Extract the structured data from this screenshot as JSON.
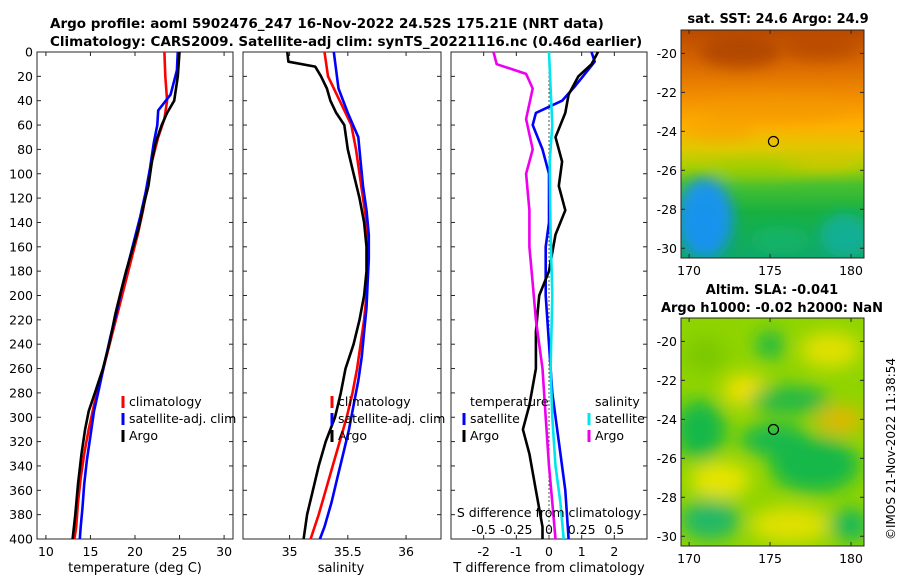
{
  "header": {
    "line1": "Argo profile: aoml 5902476_247 16-Nov-2022 24.52S 175.21E (NRT data)",
    "line2": "Climatology: CARS2009. Satellite-adj clim: synTS_20221116.nc (0.46d earlier)"
  },
  "credit": "©IMOS 21-Nov-2022 11:38:54",
  "colors": {
    "clim": "#ff0000",
    "sat": "#0000ff",
    "argo": "#000000",
    "sat_salt": "#00e5ee",
    "argo_salt": "#ee00ee"
  },
  "chart_data": [
    {
      "type": "line",
      "id": "temperature",
      "xlabel": "temperature (deg C)",
      "xlim": [
        9,
        31
      ],
      "ylim": [
        0,
        400
      ],
      "xticks": [
        10,
        15,
        20,
        25,
        30
      ],
      "yticks": [
        0,
        20,
        40,
        60,
        80,
        100,
        120,
        140,
        160,
        180,
        200,
        220,
        240,
        260,
        280,
        300,
        320,
        340,
        360,
        380,
        400
      ],
      "legend": [
        "climatology",
        "satellite-adj. clim",
        "Argo"
      ],
      "series": [
        {
          "name": "climatology",
          "color": "clim",
          "points": [
            [
              23.3,
              0
            ],
            [
              23.4,
              20
            ],
            [
              23.6,
              40
            ],
            [
              23.3,
              55
            ],
            [
              22.6,
              70
            ],
            [
              21.9,
              90
            ],
            [
              21.4,
              110
            ],
            [
              20.9,
              130
            ],
            [
              20.3,
              150
            ],
            [
              19.6,
              170
            ],
            [
              18.9,
              190
            ],
            [
              18.2,
              210
            ],
            [
              17.5,
              230
            ],
            [
              16.8,
              250
            ],
            [
              16.1,
              270
            ],
            [
              15.4,
              290
            ],
            [
              14.8,
              310
            ],
            [
              14.3,
              330
            ],
            [
              13.9,
              350
            ],
            [
              13.6,
              370
            ],
            [
              13.4,
              390
            ],
            [
              13.2,
              400
            ]
          ]
        },
        {
          "name": "satellite-adj. clim",
          "color": "sat",
          "points": [
            [
              24.8,
              0
            ],
            [
              24.7,
              15
            ],
            [
              24.0,
              35
            ],
            [
              22.6,
              48
            ],
            [
              22.5,
              60
            ],
            [
              22.1,
              75
            ],
            [
              21.7,
              95
            ],
            [
              21.2,
              115
            ],
            [
              20.6,
              135
            ],
            [
              19.9,
              155
            ],
            [
              19.2,
              175
            ],
            [
              18.5,
              195
            ],
            [
              17.9,
              215
            ],
            [
              17.2,
              235
            ],
            [
              16.6,
              255
            ],
            [
              16.0,
              275
            ],
            [
              15.4,
              295
            ],
            [
              15.0,
              315
            ],
            [
              14.6,
              335
            ],
            [
              14.3,
              355
            ],
            [
              14.1,
              375
            ],
            [
              13.9,
              390
            ],
            [
              13.8,
              400
            ]
          ]
        },
        {
          "name": "Argo",
          "color": "argo",
          "points": [
            [
              25.0,
              0
            ],
            [
              24.8,
              20
            ],
            [
              24.4,
              40
            ],
            [
              23.6,
              50
            ],
            [
              23.0,
              60
            ],
            [
              22.3,
              75
            ],
            [
              21.9,
              90
            ],
            [
              21.5,
              110
            ],
            [
              21.0,
              125
            ],
            [
              20.4,
              145
            ],
            [
              19.8,
              160
            ],
            [
              19.0,
              180
            ],
            [
              18.3,
              200
            ],
            [
              17.8,
              215
            ],
            [
              17.1,
              240
            ],
            [
              16.4,
              260
            ],
            [
              15.5,
              280
            ],
            [
              14.8,
              295
            ],
            [
              14.4,
              310
            ],
            [
              14.0,
              330
            ],
            [
              13.6,
              355
            ],
            [
              13.3,
              380
            ],
            [
              13.0,
              400
            ]
          ]
        }
      ]
    },
    {
      "type": "line",
      "id": "salinity",
      "xlabel": "salinity",
      "xlim": [
        34.6,
        36.3
      ],
      "ylim": [
        0,
        400
      ],
      "xticks": [
        35,
        35.5,
        36
      ],
      "legend": [
        "climatology",
        "satellite-adj. clim",
        "Argo"
      ],
      "series": [
        {
          "name": "climatology",
          "color": "clim",
          "points": [
            [
              35.3,
              0
            ],
            [
              35.33,
              20
            ],
            [
              35.43,
              40
            ],
            [
              35.53,
              60
            ],
            [
              35.57,
              80
            ],
            [
              35.6,
              100
            ],
            [
              35.63,
              120
            ],
            [
              35.66,
              140
            ],
            [
              35.67,
              160
            ],
            [
              35.67,
              180
            ],
            [
              35.66,
              200
            ],
            [
              35.64,
              220
            ],
            [
              35.61,
              240
            ],
            [
              35.58,
              260
            ],
            [
              35.54,
              280
            ],
            [
              35.49,
              300
            ],
            [
              35.43,
              320
            ],
            [
              35.37,
              340
            ],
            [
              35.31,
              360
            ],
            [
              35.25,
              380
            ],
            [
              35.18,
              400
            ]
          ]
        },
        {
          "name": "satellite-adj. clim",
          "color": "sat",
          "points": [
            [
              35.38,
              0
            ],
            [
              35.42,
              30
            ],
            [
              35.5,
              50
            ],
            [
              35.59,
              70
            ],
            [
              35.61,
              90
            ],
            [
              35.63,
              110
            ],
            [
              35.66,
              130
            ],
            [
              35.68,
              150
            ],
            [
              35.68,
              170
            ],
            [
              35.67,
              190
            ],
            [
              35.66,
              210
            ],
            [
              35.64,
              230
            ],
            [
              35.62,
              250
            ],
            [
              35.59,
              270
            ],
            [
              35.55,
              290
            ],
            [
              35.51,
              310
            ],
            [
              35.46,
              330
            ],
            [
              35.41,
              350
            ],
            [
              35.36,
              370
            ],
            [
              35.3,
              390
            ],
            [
              35.26,
              400
            ]
          ]
        },
        {
          "name": "Argo",
          "color": "argo",
          "points": [
            [
              34.98,
              0
            ],
            [
              34.99,
              8
            ],
            [
              35.22,
              12
            ],
            [
              35.27,
              20
            ],
            [
              35.32,
              30
            ],
            [
              35.35,
              40
            ],
            [
              35.4,
              50
            ],
            [
              35.47,
              60
            ],
            [
              35.5,
              80
            ],
            [
              35.55,
              100
            ],
            [
              35.6,
              120
            ],
            [
              35.64,
              140
            ],
            [
              35.66,
              160
            ],
            [
              35.66,
              180
            ],
            [
              35.64,
              200
            ],
            [
              35.6,
              220
            ],
            [
              35.55,
              240
            ],
            [
              35.48,
              260
            ],
            [
              35.44,
              280
            ],
            [
              35.39,
              300
            ],
            [
              35.31,
              320
            ],
            [
              35.25,
              340
            ],
            [
              35.2,
              360
            ],
            [
              35.15,
              380
            ],
            [
              35.12,
              400
            ]
          ]
        }
      ]
    },
    {
      "type": "line",
      "id": "difference",
      "xlabel": "T difference from climatology",
      "xlabel_top": "S difference from climatology",
      "xlim": [
        -3,
        3
      ],
      "ylim": [
        0,
        400
      ],
      "xticks": [
        -2,
        -1,
        0,
        1,
        2
      ],
      "top_ticks": [
        {
          "label": "-0.5",
          "value": -2
        },
        {
          "label": "-0.25",
          "value": -1
        },
        {
          "label": "0",
          "value": 0
        },
        {
          "label": "0.25",
          "value": 1
        },
        {
          "label": "0.5",
          "value": 2
        }
      ],
      "legend_temperature": {
        "title": "temperature",
        "items": [
          "satellite",
          "Argo"
        ]
      },
      "legend_salinity": {
        "title": "salinity",
        "items": [
          "satellite",
          "Argo"
        ]
      },
      "series": [
        {
          "name": "temperature satellite",
          "color": "sat",
          "points": [
            [
              1.3,
              0
            ],
            [
              1.4,
              8
            ],
            [
              1.1,
              18
            ],
            [
              0.8,
              28
            ],
            [
              0.4,
              40
            ],
            [
              -0.4,
              50
            ],
            [
              -0.5,
              60
            ],
            [
              -0.2,
              80
            ],
            [
              0.0,
              100
            ],
            [
              0.0,
              140
            ],
            [
              -0.1,
              160
            ],
            [
              -0.1,
              200
            ],
            [
              0.0,
              240
            ],
            [
              0.1,
              280
            ],
            [
              0.3,
              320
            ],
            [
              0.5,
              360
            ],
            [
              0.6,
              400
            ]
          ]
        },
        {
          "name": "temperature Argo",
          "color": "argo",
          "points": [
            [
              1.5,
              0
            ],
            [
              1.3,
              10
            ],
            [
              0.9,
              20
            ],
            [
              0.6,
              35
            ],
            [
              0.5,
              50
            ],
            [
              0.2,
              70
            ],
            [
              0.4,
              90
            ],
            [
              0.3,
              110
            ],
            [
              0.5,
              130
            ],
            [
              0.2,
              150
            ],
            [
              0.0,
              180
            ],
            [
              -0.3,
              200
            ],
            [
              -0.4,
              230
            ],
            [
              -0.4,
              260
            ],
            [
              -0.6,
              290
            ],
            [
              -0.8,
              310
            ],
            [
              -0.6,
              330
            ],
            [
              -0.4,
              360
            ],
            [
              -0.2,
              390
            ],
            [
              -0.2,
              400
            ]
          ]
        },
        {
          "name": "salinity satellite",
          "color": "sat_salt",
          "points": [
            [
              0.0,
              0
            ],
            [
              0.05,
              30
            ],
            [
              0.1,
              60
            ],
            [
              0.02,
              90
            ],
            [
              0.05,
              150
            ],
            [
              0.1,
              200
            ],
            [
              0.05,
              260
            ],
            [
              0.1,
              300
            ],
            [
              0.2,
              340
            ],
            [
              0.35,
              370
            ],
            [
              0.45,
              400
            ]
          ]
        },
        {
          "name": "salinity Argo",
          "color": "argo_salt",
          "points": [
            [
              -1.7,
              0
            ],
            [
              -1.6,
              10
            ],
            [
              -0.7,
              18
            ],
            [
              -0.5,
              30
            ],
            [
              -0.7,
              55
            ],
            [
              -0.5,
              80
            ],
            [
              -0.7,
              100
            ],
            [
              -0.6,
              130
            ],
            [
              -0.6,
              160
            ],
            [
              -0.5,
              190
            ],
            [
              -0.4,
              220
            ],
            [
              -0.2,
              260
            ],
            [
              -0.1,
              300
            ],
            [
              0.0,
              340
            ],
            [
              0.1,
              370
            ],
            [
              0.2,
              400
            ]
          ]
        }
      ]
    },
    {
      "type": "heatmap",
      "id": "sst_map",
      "title": "sat. SST: 24.6 Argo: 24.9",
      "xlim": [
        169.5,
        180.8
      ],
      "ylim": [
        -30.5,
        -18.8
      ],
      "xticks": [
        170,
        175,
        180
      ],
      "yticks": [
        -20,
        -22,
        -24,
        -26,
        -28,
        -30
      ],
      "marker": {
        "lon": 175.21,
        "lat": -24.52
      }
    },
    {
      "type": "heatmap",
      "id": "sla_map",
      "title": "Altim. SLA: -0.041",
      "subtitle": "Argo h1000: -0.02 h2000: NaN",
      "xlim": [
        169.5,
        180.8
      ],
      "ylim": [
        -30.5,
        -18.8
      ],
      "xticks": [
        170,
        175,
        180
      ],
      "yticks": [
        -20,
        -22,
        -24,
        -26,
        -28,
        -30
      ],
      "marker": {
        "lon": 175.21,
        "lat": -24.52
      }
    }
  ]
}
